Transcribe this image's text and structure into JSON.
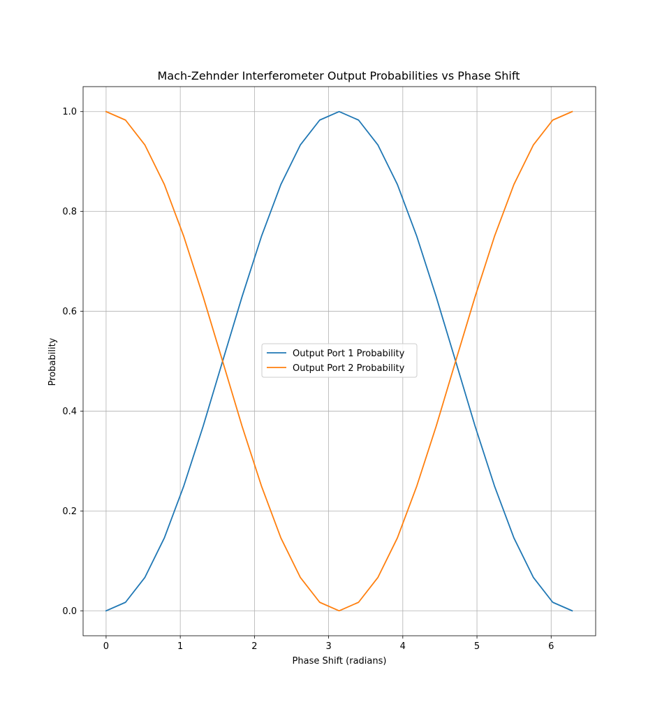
{
  "chart_data": {
    "type": "line",
    "title": "Mach-Zehnder Interferometer Output Probabilities vs Phase Shift",
    "xlabel": "Phase Shift (radians)",
    "ylabel": "Probability",
    "xlim": [
      -0.31,
      6.6
    ],
    "ylim": [
      -0.05,
      1.05
    ],
    "xticks": [
      0,
      1,
      2,
      3,
      4,
      5,
      6
    ],
    "yticks": [
      0.0,
      0.2,
      0.4,
      0.6,
      0.8,
      1.0
    ],
    "xtick_labels": [
      "0",
      "1",
      "2",
      "3",
      "4",
      "5",
      "6"
    ],
    "ytick_labels": [
      "0.0",
      "0.2",
      "0.4",
      "0.6",
      "0.8",
      "1.0"
    ],
    "grid": true,
    "legend_position": "center",
    "x": [
      0,
      0.2618,
      0.5236,
      0.7854,
      1.0472,
      1.309,
      1.5708,
      1.8326,
      2.0944,
      2.3562,
      2.618,
      2.8798,
      3.1416,
      3.4034,
      3.6652,
      3.927,
      4.1888,
      4.4506,
      4.7124,
      4.9742,
      5.236,
      5.4978,
      5.7596,
      6.0214,
      6.2832
    ],
    "series": [
      {
        "name": "Output Port 1 Probability",
        "color": "#1f77b4",
        "values": [
          0.0,
          0.017,
          0.067,
          0.146,
          0.25,
          0.37,
          0.5,
          0.629,
          0.75,
          0.854,
          0.933,
          0.983,
          1.0,
          0.983,
          0.933,
          0.854,
          0.75,
          0.629,
          0.5,
          0.37,
          0.25,
          0.146,
          0.067,
          0.017,
          0.0
        ]
      },
      {
        "name": "Output Port 2 Probability",
        "color": "#ff7f0e",
        "values": [
          1.0,
          0.983,
          0.933,
          0.854,
          0.75,
          0.629,
          0.5,
          0.37,
          0.25,
          0.146,
          0.067,
          0.017,
          0.0,
          0.017,
          0.067,
          0.146,
          0.25,
          0.37,
          0.5,
          0.629,
          0.75,
          0.854,
          0.933,
          0.983,
          1.0
        ]
      }
    ]
  }
}
